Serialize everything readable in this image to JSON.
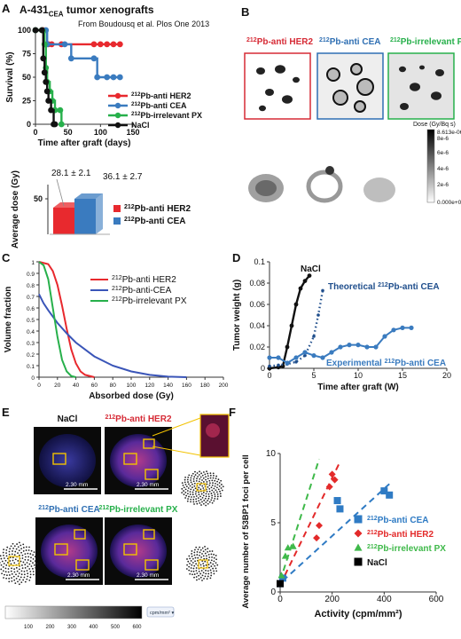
{
  "panels": {
    "A": {
      "label": "A",
      "title_main": "A-431",
      "title_sub": "CEA",
      "title_rest": " tumor xenografts",
      "source": "From Boudousq et al. Plos One 2013",
      "survival_chart": {
        "type": "line",
        "xlabel": "Time after graft (days)",
        "ylabel": "Survival (%)",
        "xlim": [
          0,
          150
        ],
        "ylim": [
          0,
          100
        ],
        "xticks": [
          "0",
          "50",
          "100",
          "150"
        ],
        "yticks": [
          "0",
          "25",
          "50",
          "75",
          "100"
        ],
        "series": [
          {
            "name_sup": "212",
            "name": "Pb-anti HER2",
            "color": "#e8292e",
            "points": [
              [
                0,
                100
              ],
              [
                12,
                100
              ],
              [
                14,
                85
              ],
              [
                20,
                85
              ],
              [
                25,
                85
              ],
              [
                40,
                85
              ],
              [
                90,
                85
              ],
              [
                100,
                85
              ],
              [
                110,
                85
              ],
              [
                120,
                85
              ],
              [
                130,
                85
              ]
            ]
          },
          {
            "name_sup": "212",
            "name": "Pb-anti CEA",
            "color": "#3a7bbf",
            "points": [
              [
                0,
                100
              ],
              [
                16,
                100
              ],
              [
                18,
                85
              ],
              [
                45,
                85
              ],
              [
                55,
                70
              ],
              [
                90,
                70
              ],
              [
                95,
                50
              ],
              [
                110,
                50
              ],
              [
                120,
                50
              ],
              [
                130,
                50
              ]
            ]
          },
          {
            "name_sup": "212",
            "name": "Pb-irrelevant PX",
            "color": "#27b04b",
            "points": [
              [
                0,
                100
              ],
              [
                10,
                100
              ],
              [
                14,
                85
              ],
              [
                16,
                60
              ],
              [
                18,
                45
              ],
              [
                22,
                35
              ],
              [
                26,
                25
              ],
              [
                30,
                15
              ],
              [
                38,
                15
              ],
              [
                40,
                0
              ]
            ]
          },
          {
            "name": "NaCl",
            "color": "#111111",
            "points": [
              [
                0,
                100
              ],
              [
                10,
                100
              ],
              [
                12,
                70
              ],
              [
                14,
                55
              ],
              [
                16,
                45
              ],
              [
                18,
                35
              ],
              [
                20,
                25
              ],
              [
                24,
                15
              ],
              [
                28,
                0
              ],
              [
                30,
                0
              ]
            ]
          }
        ]
      },
      "dose_chart": {
        "type": "bar",
        "ylabel": "Average dose (Gy)",
        "ytick": "50",
        "labels": [
          "28.1 ± 2.1",
          "36.1 ± 2.7"
        ],
        "legend": [
          {
            "sup": "212",
            "name": "Pb-anti HER2",
            "color": "#e8292e"
          },
          {
            "sup": "212",
            "name": "Pb-anti CEA",
            "color": "#3a7bbf"
          }
        ]
      }
    },
    "B": {
      "label": "B",
      "images": [
        {
          "sup": "212",
          "name": "Pb-anti HER2",
          "color": "#d62a35"
        },
        {
          "sup": "212",
          "name": "Pb-anti CEA",
          "color": "#2f6fb3"
        },
        {
          "sup": "212",
          "name": "Pb-irrelevant PX",
          "color": "#27b04b"
        }
      ],
      "colorbar_title": "Dose (Gy/Bq s)",
      "colorbar_ticks": [
        "8.613e-06",
        "8e-6",
        "6e-6",
        "4e-6",
        "2e-6",
        "0.000e+00"
      ]
    },
    "C": {
      "label": "C",
      "chart": {
        "type": "line",
        "xlabel": "Absorbed dose (Gy)",
        "ylabel": "Volume fraction",
        "xticks": [
          "0",
          "20",
          "40",
          "60",
          "80",
          "100",
          "120",
          "140",
          "160",
          "180",
          "200"
        ],
        "yticks": [
          "0",
          "0.1",
          "0.2",
          "0.3",
          "0.4",
          "0.5",
          "0.6",
          "0.7",
          "0.8",
          "0.9",
          "1"
        ],
        "xlim": [
          0,
          200
        ],
        "ylim": [
          0,
          1
        ],
        "series": [
          {
            "sup": "212",
            "name": "Pb-anti HER2",
            "color": "#e8292e",
            "points": [
              [
                0,
                1
              ],
              [
                10,
                0.98
              ],
              [
                15,
                0.92
              ],
              [
                20,
                0.8
              ],
              [
                25,
                0.62
              ],
              [
                30,
                0.42
              ],
              [
                35,
                0.24
              ],
              [
                40,
                0.12
              ],
              [
                45,
                0.05
              ],
              [
                50,
                0.02
              ],
              [
                60,
                0
              ]
            ]
          },
          {
            "sup": "212",
            "name": "Pb-anti-CEA",
            "color": "#3a55b8",
            "points": [
              [
                0,
                0.72
              ],
              [
                5,
                0.64
              ],
              [
                10,
                0.58
              ],
              [
                20,
                0.47
              ],
              [
                30,
                0.38
              ],
              [
                40,
                0.3
              ],
              [
                60,
                0.18
              ],
              [
                80,
                0.1
              ],
              [
                100,
                0.05
              ],
              [
                120,
                0.02
              ],
              [
                140,
                0.005
              ],
              [
                160,
                0
              ]
            ]
          },
          {
            "sup": "212",
            "name": "Pb-irrelevant PX",
            "color": "#27b04b",
            "points": [
              [
                0,
                1
              ],
              [
                5,
                0.97
              ],
              [
                10,
                0.85
              ],
              [
                15,
                0.6
              ],
              [
                20,
                0.35
              ],
              [
                25,
                0.15
              ],
              [
                30,
                0.05
              ],
              [
                35,
                0.01
              ],
              [
                40,
                0
              ]
            ]
          }
        ]
      }
    },
    "D": {
      "label": "D",
      "chart": {
        "type": "line",
        "xlabel": "Time after graft (W)",
        "ylabel": "Tumor weight (g)",
        "xticks": [
          "0",
          "5",
          "10",
          "15",
          "20"
        ],
        "yticks": [
          "0",
          "0.02",
          "0.04",
          "0.06",
          "0.08",
          "0.1"
        ],
        "xlim": [
          0,
          20
        ],
        "ylim": [
          0,
          0.1
        ],
        "labels": {
          "nacl": "NaCl",
          "theoretical_pre": "Theoretical ",
          "theoretical_sup": "212",
          "theoretical_post": "Pb-anti CEA",
          "experimental_pre": "Experimental ",
          "experimental_sup": "212",
          "experimental_post": "Pb-anti CEA"
        },
        "series": [
          {
            "name": "NaCl",
            "color": "#111111",
            "points": [
              [
                0,
                0
              ],
              [
                1,
                0.001
              ],
              [
                1.5,
                0.002
              ],
              [
                2,
                0.02
              ],
              [
                2.5,
                0.04
              ],
              [
                3,
                0.06
              ],
              [
                3.5,
                0.075
              ],
              [
                4,
                0.082
              ],
              [
                4.5,
                0.087
              ]
            ]
          },
          {
            "name": "Theoretical",
            "color": "#1f4e8c",
            "points": [
              [
                0,
                0.002
              ],
              [
                1,
                0.003
              ],
              [
                2,
                0.004
              ],
              [
                3,
                0.006
              ],
              [
                4,
                0.012
              ],
              [
                5,
                0.03
              ],
              [
                5.5,
                0.05
              ],
              [
                6,
                0.073
              ]
            ]
          },
          {
            "name": "Experimental",
            "color": "#3a7bbf",
            "points": [
              [
                0,
                0.01
              ],
              [
                1,
                0.01
              ],
              [
                2,
                0.005
              ],
              [
                3,
                0.01
              ],
              [
                4,
                0.015
              ],
              [
                5,
                0.012
              ],
              [
                6,
                0.01
              ],
              [
                7,
                0.015
              ],
              [
                8,
                0.02
              ],
              [
                9,
                0.022
              ],
              [
                10,
                0.022
              ],
              [
                11,
                0.02
              ],
              [
                12,
                0.02
              ],
              [
                13,
                0.03
              ],
              [
                14,
                0.036
              ],
              [
                15,
                0.038
              ],
              [
                16,
                0.038
              ]
            ]
          }
        ]
      }
    },
    "E": {
      "label": "E",
      "tiles": [
        {
          "title": "NaCl",
          "title_sup": "",
          "color": "#111111",
          "scale": "2.30 mm"
        },
        {
          "title": "Pb-anti HER2",
          "title_sup": "212",
          "color": "#d62a35",
          "scale": "2.30 mm"
        },
        {
          "title": "Pb-anti CEA",
          "title_sup": "212",
          "color": "#2f6fb3",
          "scale": "2.30 mm"
        },
        {
          "title": "Pb-irrelevant PX",
          "title_sup": "212",
          "color": "#27b04b",
          "scale": "2.30 mm"
        }
      ],
      "colorbar_ticks": [
        "100",
        "200",
        "300",
        "400",
        "500",
        "600"
      ],
      "colorbar_unit": "cpm/mm² ▾"
    },
    "F": {
      "label": "F",
      "chart": {
        "type": "scatter",
        "xlabel": "Activity (cpm/mm²)",
        "ylabel": "Average number of 53BP1 foci per cell",
        "xticks": [
          "0",
          "200",
          "400",
          "600"
        ],
        "yticks": [
          "0",
          "5",
          "10"
        ],
        "xlim": [
          0,
          600
        ],
        "ylim": [
          0,
          10
        ],
        "series": [
          {
            "sup": "212",
            "name": "Pb-anti CEA",
            "color": "#2f7bc4",
            "marker": "square",
            "points": [
              [
                0,
                0.6
              ],
              [
                10,
                1.0
              ],
              [
                220,
                6.6
              ],
              [
                230,
                6.0
              ],
              [
                400,
                7.3
              ],
              [
                420,
                7.0
              ]
            ]
          },
          {
            "sup": "212",
            "name": "Pb-anti HER2",
            "color": "#e32a2a",
            "marker": "diamond",
            "points": [
              [
                140,
                3.9
              ],
              [
                150,
                4.8
              ],
              [
                190,
                7.6
              ],
              [
                200,
                8.5
              ],
              [
                210,
                8.1
              ]
            ]
          },
          {
            "sup": "212",
            "name": "Pb-irrelevant  PX",
            "color": "#3fb94a",
            "marker": "triangle",
            "points": [
              [
                5,
                1.2
              ],
              [
                20,
                2.6
              ],
              [
                30,
                3.2
              ],
              [
                50,
                3.3
              ]
            ]
          },
          {
            "name": "NaCl",
            "color": "#000000",
            "marker": "square",
            "points": [
              [
                0,
                0.6
              ]
            ]
          }
        ]
      }
    }
  }
}
